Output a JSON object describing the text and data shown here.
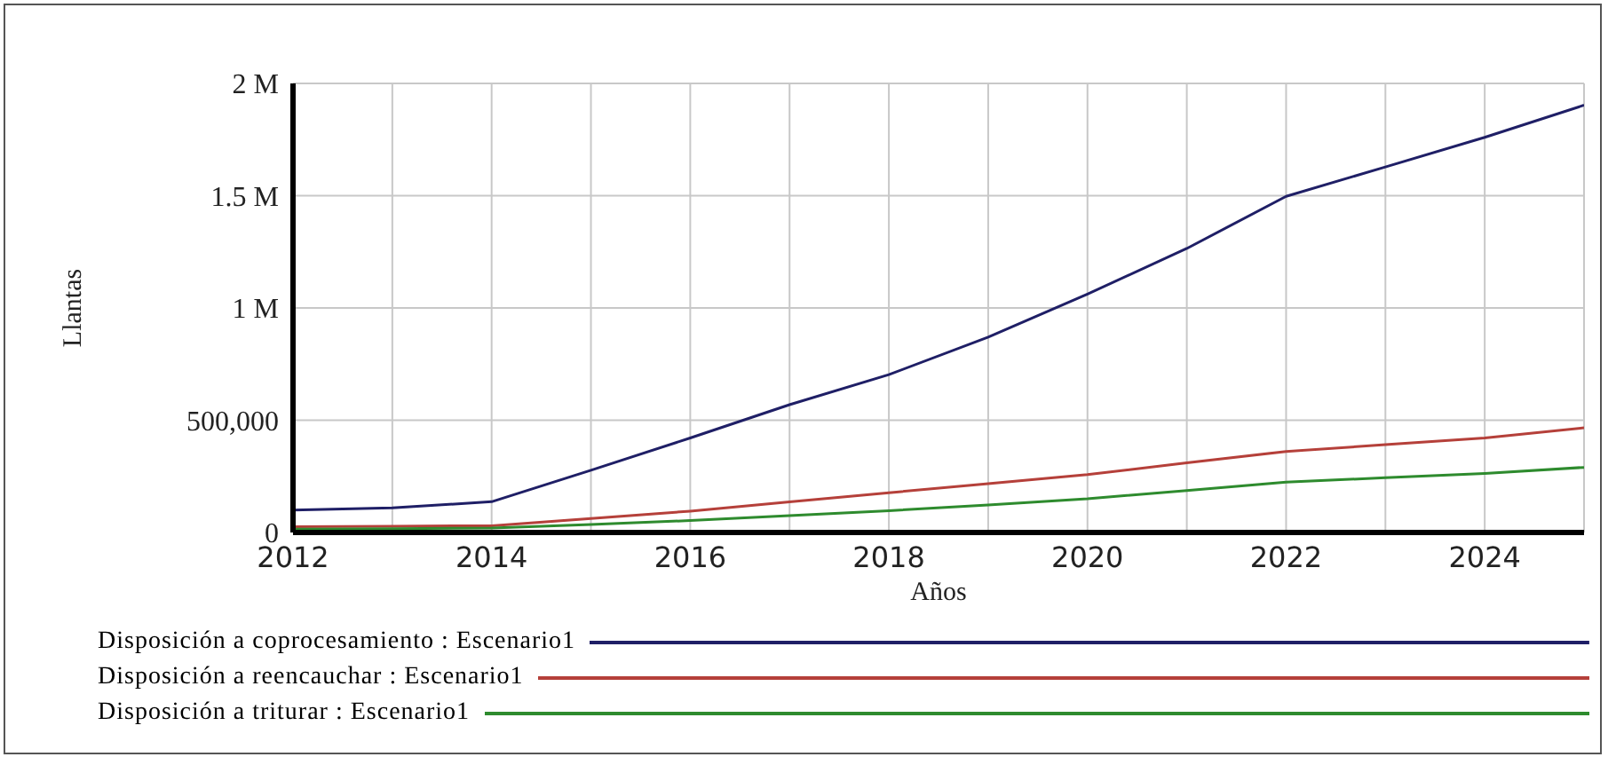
{
  "chart_data": {
    "type": "line",
    "xlabel": "Años",
    "ylabel": "Llantas",
    "x": [
      2012,
      2013,
      2014,
      2015,
      2016,
      2017,
      2018,
      2019,
      2020,
      2021,
      2022,
      2023,
      2024,
      2025
    ],
    "series": [
      {
        "name": "Disposición a coprocesamiento : Escenario1",
        "color": "#1f1f66",
        "values": [
          100000,
          110000,
          137000,
          277000,
          421000,
          569000,
          703000,
          870000,
          1062000,
          1265000,
          1497000,
          1628000,
          1760000,
          1903000
        ]
      },
      {
        "name": "Disposición a reencauchar : Escenario1",
        "color": "#b5403a",
        "values": [
          26000,
          28000,
          30000,
          62000,
          95000,
          136000,
          177000,
          217000,
          258000,
          310000,
          361000,
          391000,
          421000,
          466000
        ]
      },
      {
        "name": "Disposición a triturar : Escenario1",
        "color": "#2e8b2e",
        "values": [
          15000,
          17000,
          20000,
          36000,
          53000,
          75000,
          97000,
          123000,
          150000,
          187000,
          224000,
          244000,
          263000,
          290000
        ]
      }
    ],
    "xlim": [
      2012,
      2025
    ],
    "xticks": [
      2012,
      {
        "value": 2013,
        "label": null
      },
      2014,
      {
        "value": 2015,
        "label": null
      },
      2016,
      {
        "value": 2017,
        "label": null
      },
      2018,
      {
        "value": 2019,
        "label": null
      },
      2020,
      {
        "value": 2021,
        "label": null
      },
      2022,
      {
        "value": 2023,
        "label": null
      },
      2024,
      {
        "value": 2025,
        "label": null
      }
    ],
    "ylim": [
      0,
      2000000
    ],
    "yticks": [
      {
        "value": 0,
        "label": "0"
      },
      {
        "value": 500000,
        "label": "500,000"
      },
      {
        "value": 1000000,
        "label": "1 M"
      },
      {
        "value": 1500000,
        "label": "1.5 M"
      },
      {
        "value": 2000000,
        "label": "2 M"
      }
    ],
    "grid": true,
    "legend": "bottom",
    "line_style": "solid",
    "marker": "none"
  }
}
